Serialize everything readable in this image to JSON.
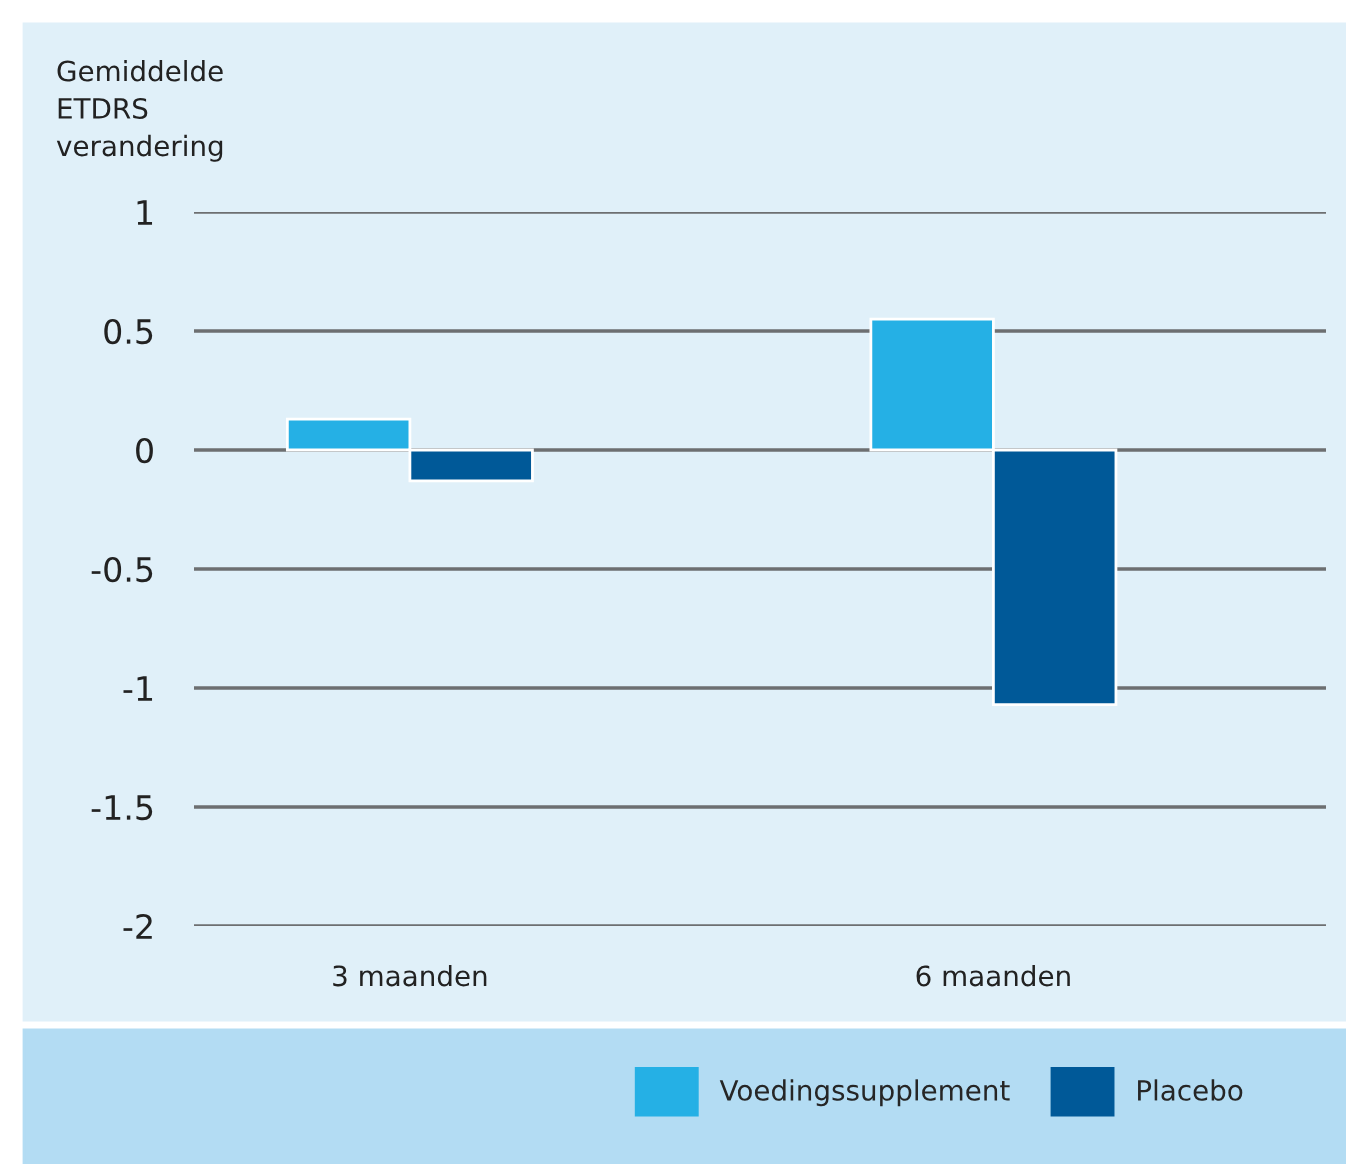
{
  "chart_data": {
    "type": "bar",
    "ylabel": "Gemiddelde\nETDRS\nverandering",
    "categories": [
      "3 maanden",
      "6 maanden"
    ],
    "series": [
      {
        "name": "Voedingssupplement",
        "color": "#25b0e5",
        "values": [
          0.13,
          0.55
        ]
      },
      {
        "name": "Placebo",
        "color": "#005998",
        "values": [
          -0.13,
          -1.07
        ]
      }
    ],
    "ylim": [
      -2,
      1
    ],
    "yticks": [
      {
        "value": -2,
        "label": "-2"
      },
      {
        "value": -1.5,
        "label": "-1.5"
      },
      {
        "value": -1,
        "label": "-1"
      },
      {
        "value": -0.5,
        "label": "-0.5"
      },
      0,
      0.5,
      1
    ],
    "grid": "y",
    "legend": "bottom"
  }
}
